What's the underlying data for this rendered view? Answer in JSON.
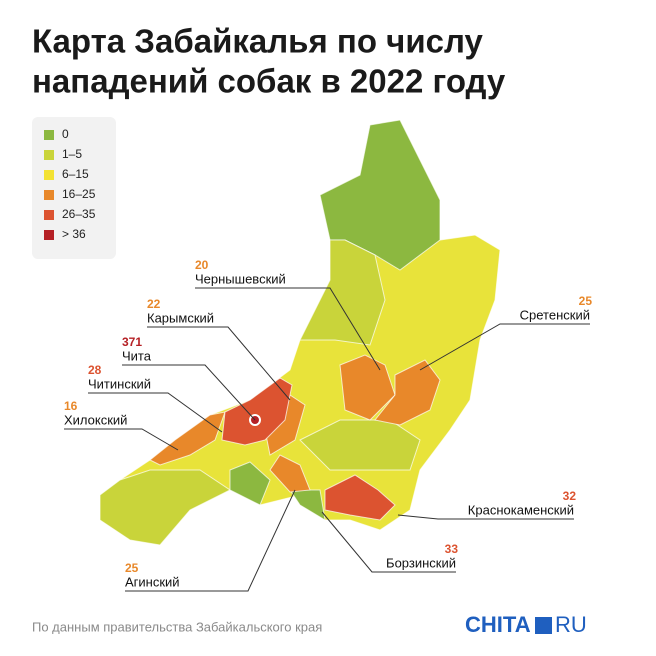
{
  "title": [
    "Карта Забайкалья по числу",
    "нападений собак в 2022 году"
  ],
  "legend": [
    {
      "label": "0",
      "color": "#8cb840"
    },
    {
      "label": "1–5",
      "color": "#c9d43a"
    },
    {
      "label": "6–15",
      "color": "#f3e233"
    },
    {
      "label": "16–25",
      "color": "#e8882a"
    },
    {
      "label": "26–35",
      "color": "#dc5330"
    },
    {
      "label": "> 36",
      "color": "#b52025"
    }
  ],
  "districts": [
    {
      "name": "Чернышевский",
      "value": 20,
      "color": "#e8882a"
    },
    {
      "name": "Карымский",
      "value": 22,
      "color": "#e8882a"
    },
    {
      "name": "Чита",
      "value": 371,
      "color": "#b52025"
    },
    {
      "name": "Читинский",
      "value": 28,
      "color": "#dc5330"
    },
    {
      "name": "Хилокский",
      "value": 16,
      "color": "#e8882a"
    },
    {
      "name": "Сретенский",
      "value": 25,
      "color": "#e8882a"
    },
    {
      "name": "Краснокаменский",
      "value": 32,
      "color": "#dc5330"
    },
    {
      "name": "Борзинский",
      "value": 33,
      "color": "#dc5330"
    },
    {
      "name": "Агинский",
      "value": 25,
      "color": "#e8882a"
    }
  ],
  "source": "По данным правительства Забайкальского края",
  "logo": {
    "left": "CHITA",
    "right": "RU"
  }
}
